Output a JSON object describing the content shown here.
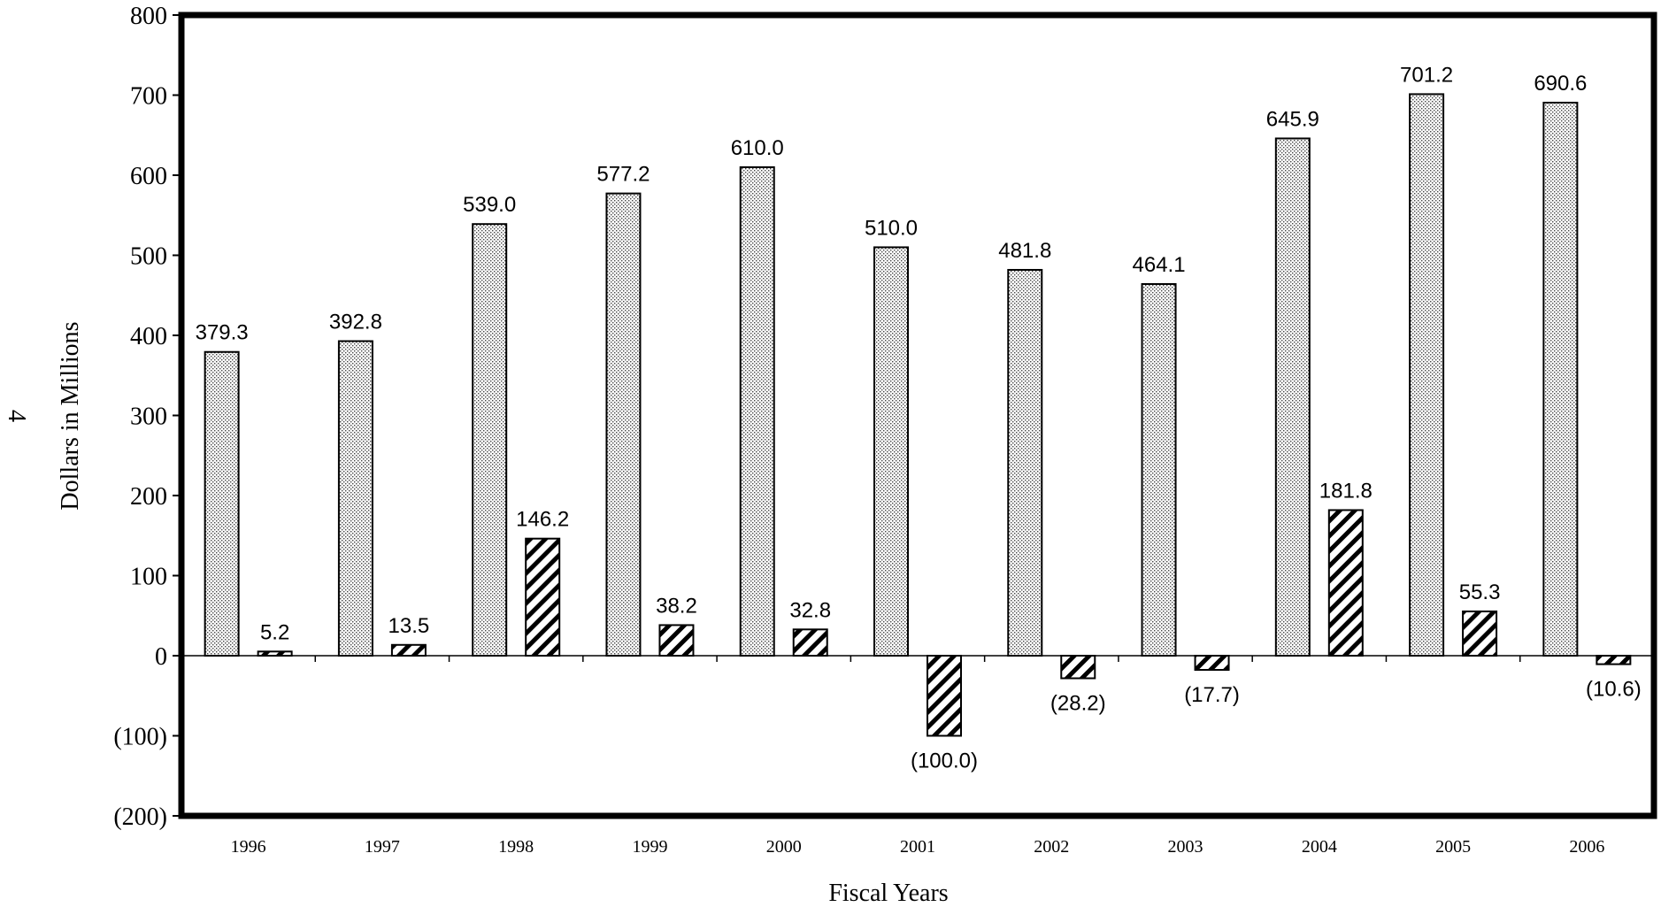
{
  "page_number": "4",
  "chart_data": {
    "type": "bar",
    "title": "",
    "xlabel": "Fiscal Years",
    "ylabel": "Dollars in Millions",
    "ylim": [
      -200,
      800
    ],
    "yticks": [
      800,
      700,
      600,
      500,
      400,
      300,
      200,
      100,
      0,
      -100,
      -200
    ],
    "ytick_labels": [
      "800",
      "700",
      "600",
      "500",
      "400",
      "300",
      "200",
      "100",
      "0",
      "(100)",
      "(200)"
    ],
    "categories": [
      "1996",
      "1997",
      "1998",
      "1999",
      "2000",
      "2001",
      "2002",
      "2003",
      "2004",
      "2005",
      "2006"
    ],
    "series": [
      {
        "pattern": "dotted",
        "values": [
          379.3,
          392.8,
          539.0,
          577.2,
          610.0,
          510.0,
          481.8,
          464.1,
          645.9,
          701.2,
          690.6
        ],
        "labels": [
          "379.3",
          "392.8",
          "539.0",
          "577.2",
          "610.0",
          "510.0",
          "481.8",
          "464.1",
          "645.9",
          "701.2",
          "690.6"
        ]
      },
      {
        "pattern": "hatched",
        "values": [
          5.2,
          13.5,
          146.2,
          38.2,
          32.8,
          -100.0,
          -28.2,
          -17.7,
          181.8,
          55.3,
          -10.6
        ],
        "labels": [
          "5.2",
          "13.5",
          "146.2",
          "38.2",
          "32.8",
          "(100.0)",
          "(28.2)",
          "(17.7)",
          "181.8",
          "55.3",
          "(10.6)"
        ]
      }
    ],
    "grid": false,
    "legend": "none"
  }
}
